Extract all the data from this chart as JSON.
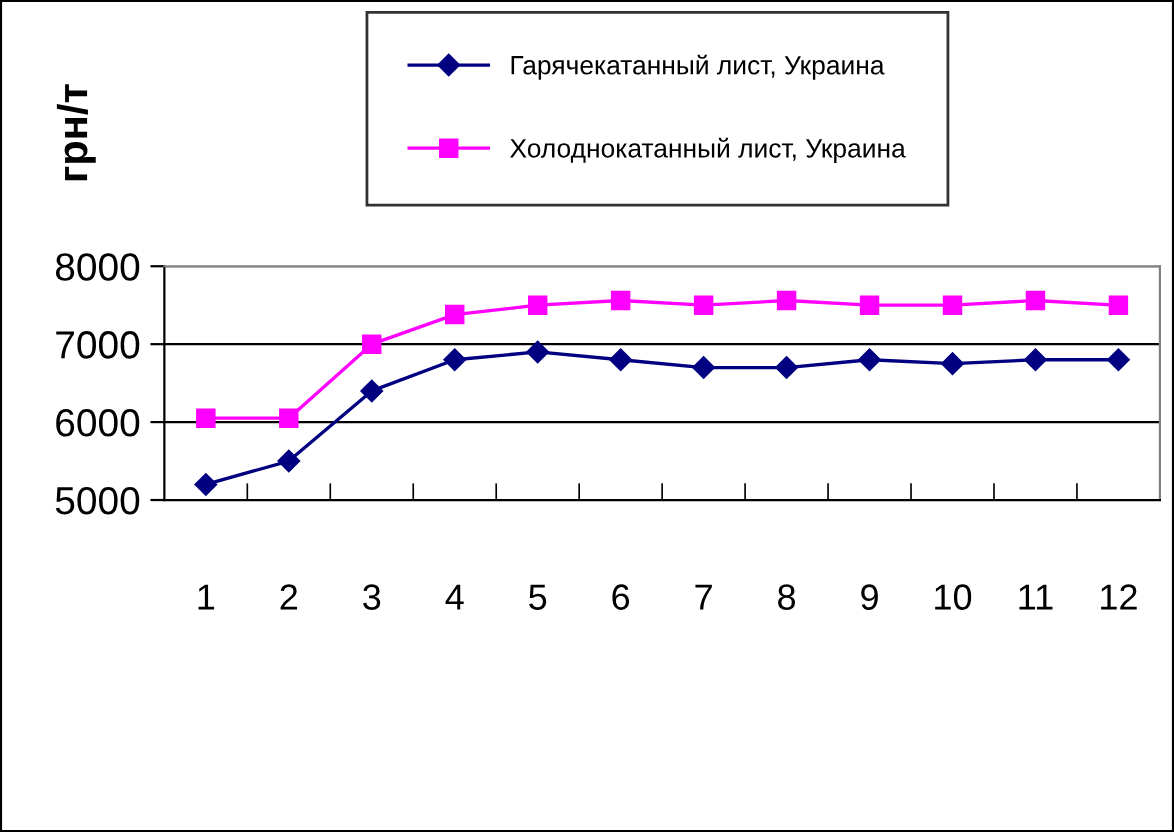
{
  "chart_data": {
    "type": "line",
    "ylabel": "грн/т",
    "categories": [
      "1",
      "2",
      "3",
      "4",
      "5",
      "6",
      "7",
      "8",
      "9",
      "10",
      "11",
      "12"
    ],
    "series": [
      {
        "name": "Гарячекатанный лист, Украина",
        "color": "#000080",
        "marker": "diamond",
        "values": [
          5200,
          5500,
          6400,
          6800,
          6900,
          6800,
          6700,
          6700,
          6800,
          6750,
          6800,
          6800
        ]
      },
      {
        "name": "Холоднокатанный лист, Украина",
        "color": "#ff00ff",
        "marker": "square",
        "values": [
          6050,
          6050,
          7000,
          7380,
          7500,
          7560,
          7500,
          7560,
          7500,
          7500,
          7560,
          7500
        ]
      }
    ],
    "ylim": [
      5000,
      8000
    ],
    "yticks": [
      5000,
      6000,
      7000,
      8000
    ],
    "grid": "y",
    "legend": "top",
    "line_style": "solid"
  }
}
